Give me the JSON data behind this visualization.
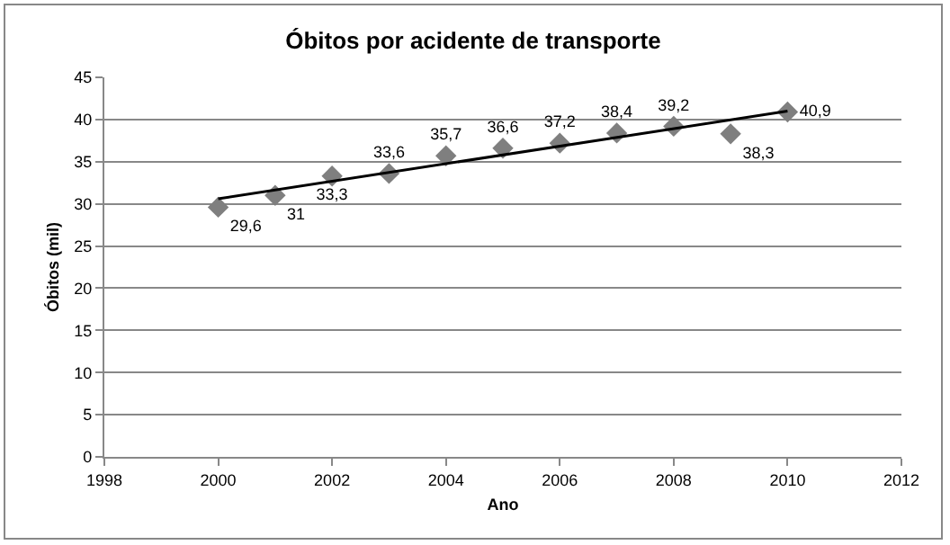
{
  "chart_data": {
    "type": "scatter",
    "title": "Óbitos por acidente de transporte",
    "xlabel": "Ano",
    "ylabel": "Óbitos (mil)",
    "xlim": [
      1998,
      2012
    ],
    "xticks": [
      1998,
      2000,
      2002,
      2004,
      2006,
      2008,
      2010,
      2012
    ],
    "ylim": [
      0,
      45
    ],
    "yticks": [
      0,
      5,
      10,
      15,
      20,
      25,
      30,
      35,
      40,
      45
    ],
    "grid": "y",
    "series": [
      {
        "type": "scatter",
        "marker": "diamond",
        "color": "#7f7f7f",
        "x": [
          2000,
          2001,
          2002,
          2003,
          2004,
          2005,
          2006,
          2007,
          2008,
          2009,
          2010
        ],
        "values": [
          29.6,
          31,
          33.3,
          33.6,
          35.7,
          36.6,
          37.2,
          38.4,
          39.2,
          38.3,
          40.9
        ],
        "value_labels": [
          "29,6",
          "31",
          "33,3",
          "33,6",
          "35,7",
          "36,6",
          "37,2",
          "38,4",
          "39,2",
          "38,3",
          "40,9"
        ]
      },
      {
        "type": "line",
        "color": "#000000",
        "x": [
          2000,
          2010
        ],
        "values": [
          30.6,
          41.0
        ]
      }
    ]
  }
}
